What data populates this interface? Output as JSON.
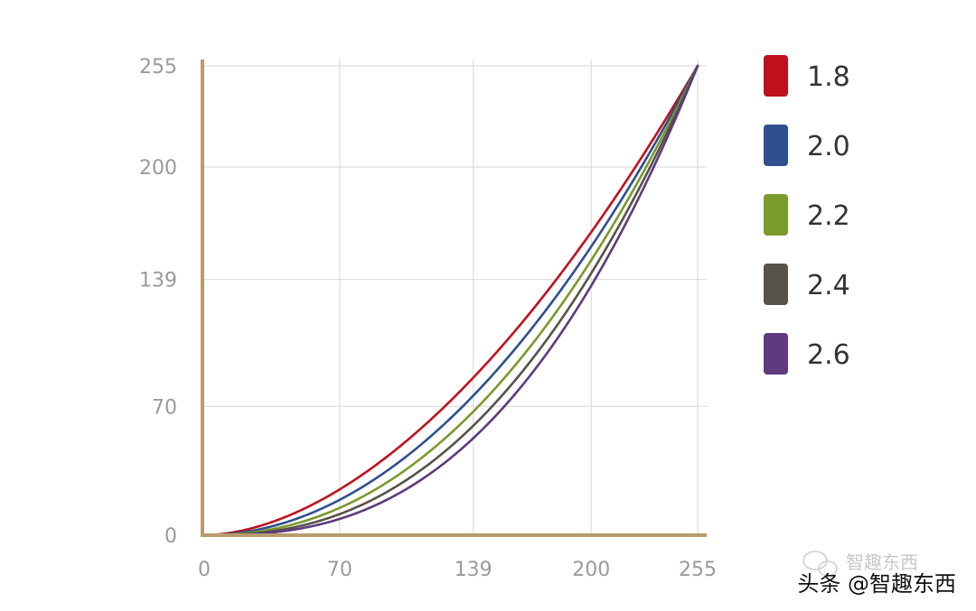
{
  "chart_data": {
    "type": "line",
    "x_ticks": [
      0,
      70,
      139,
      200,
      255
    ],
    "y_ticks": [
      0,
      70,
      139,
      200,
      255
    ],
    "xlim": [
      0,
      255
    ],
    "ylim": [
      0,
      255
    ],
    "grid": true,
    "legend_position": "right",
    "function": "y = 255 * (x / 255) ^ gamma",
    "series": [
      {
        "name": "1.8",
        "gamma": 1.8,
        "color": "#c0101e"
      },
      {
        "name": "2.0",
        "gamma": 2.0,
        "color": "#2f4f8f"
      },
      {
        "name": "2.2",
        "gamma": 2.2,
        "color": "#7a9a2c"
      },
      {
        "name": "2.4",
        "gamma": 2.4,
        "color": "#57524a"
      },
      {
        "name": "2.6",
        "gamma": 2.6,
        "color": "#5e3a7e"
      }
    ],
    "axis_color": "#b89c6c",
    "grid_color": "#dddddd"
  },
  "watermark": {
    "text": "智趣东西"
  },
  "caption": {
    "text": "头条 @智趣东西"
  }
}
